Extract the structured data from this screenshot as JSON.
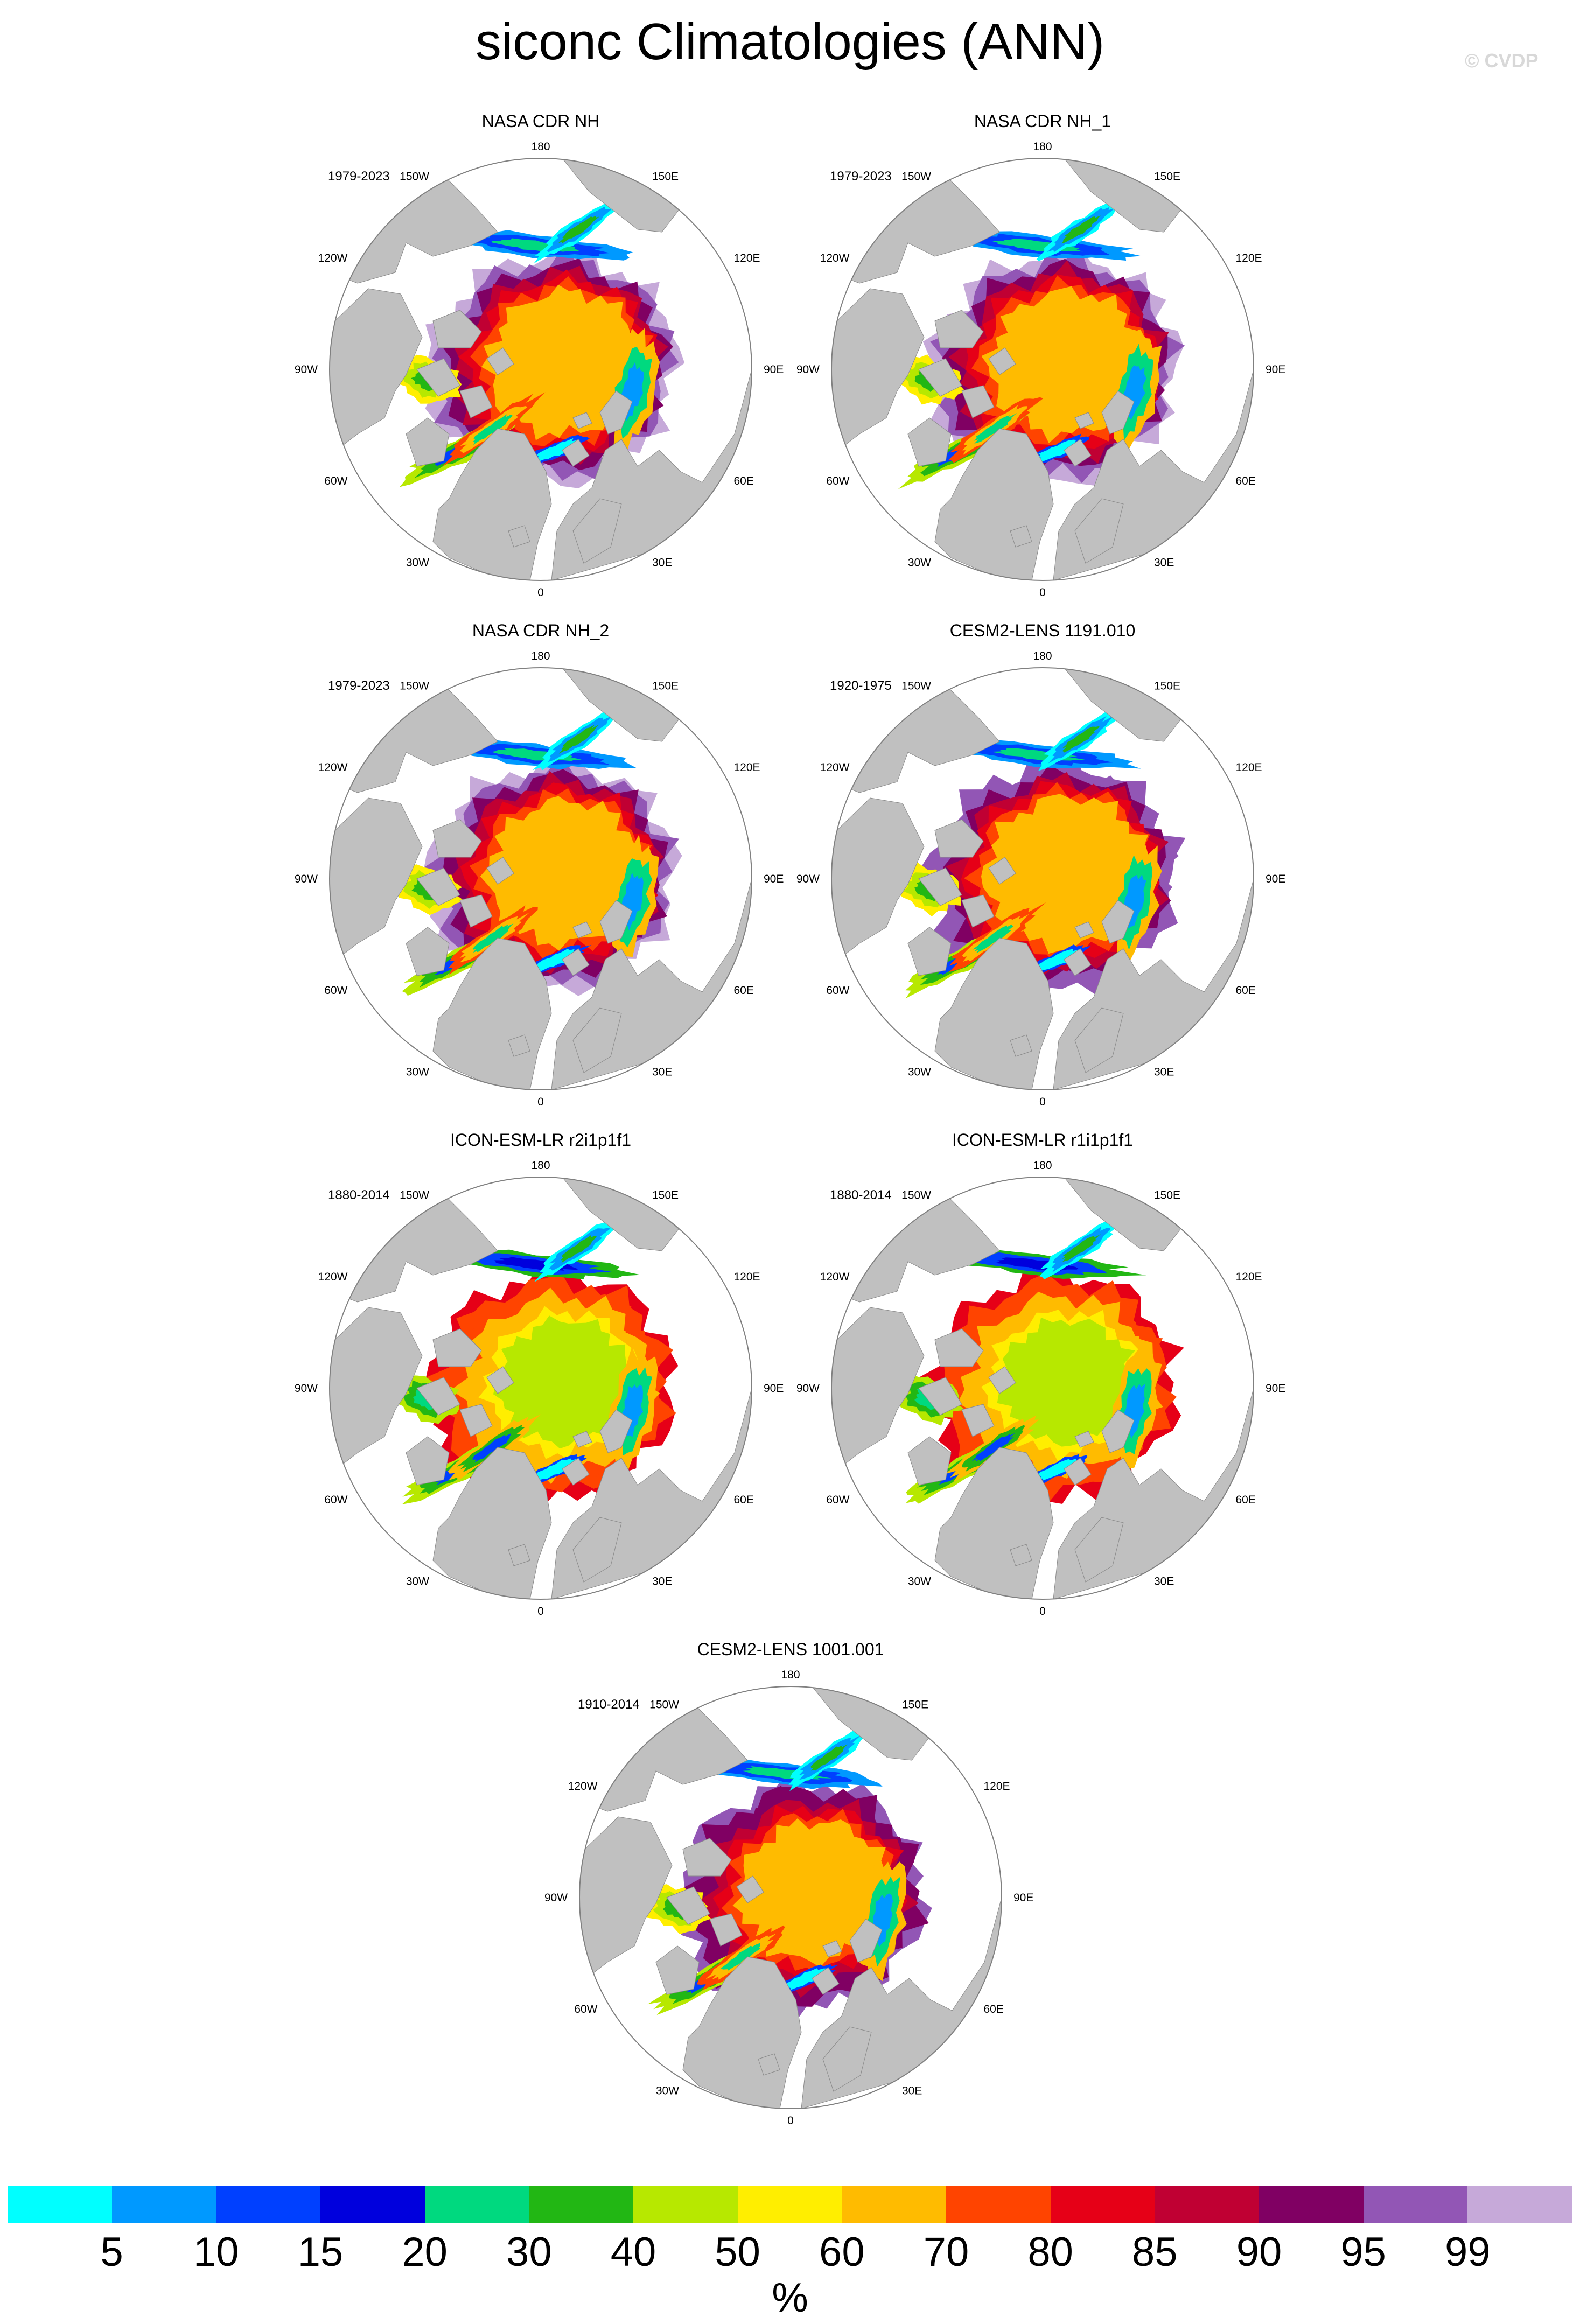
{
  "title": "siconc Climatologies (ANN)",
  "watermark": "© CVDP",
  "map_labels": {
    "lon": [
      "180",
      "150E",
      "120E",
      "90E",
      "60E",
      "30E",
      "0",
      "30W",
      "60W",
      "90W",
      "120W",
      "150W"
    ]
  },
  "panels": [
    {
      "title": "NASA CDR NH",
      "period": "1979-2023",
      "ice_profile": "obs"
    },
    {
      "title": "NASA CDR NH_1",
      "period": "1979-2023",
      "ice_profile": "obs"
    },
    {
      "title": "NASA CDR NH_2",
      "period": "1979-2023",
      "ice_profile": "obs"
    },
    {
      "title": "CESM2-LENS 1191.010",
      "period": "1920-1975",
      "ice_profile": "thick"
    },
    {
      "title": "ICON-ESM-LR r2i1p1f1",
      "period": "1880-2014",
      "ice_profile": "thin"
    },
    {
      "title": "ICON-ESM-LR r1i1p1f1",
      "period": "1880-2014",
      "ice_profile": "thin"
    },
    {
      "title": "CESM2-LENS 1001.001",
      "period": "1910-2014",
      "ice_profile": "cesm"
    }
  ],
  "colors": {
    "land": "#c0c0c0",
    "ocean": "#ffffff",
    "bins": [
      "#00ffff",
      "#0099ff",
      "#0040ff",
      "#0000dd",
      "#00d97f",
      "#22b714",
      "#b7e800",
      "#ffee00",
      "#ffbb00",
      "#ff4400",
      "#e60017",
      "#c00033",
      "#800063",
      "#9256b5",
      "#c6a9d9"
    ]
  },
  "colorbar": {
    "levels": [
      "5",
      "10",
      "15",
      "20",
      "30",
      "40",
      "50",
      "60",
      "70",
      "80",
      "85",
      "90",
      "95",
      "99"
    ],
    "units": "%"
  }
}
